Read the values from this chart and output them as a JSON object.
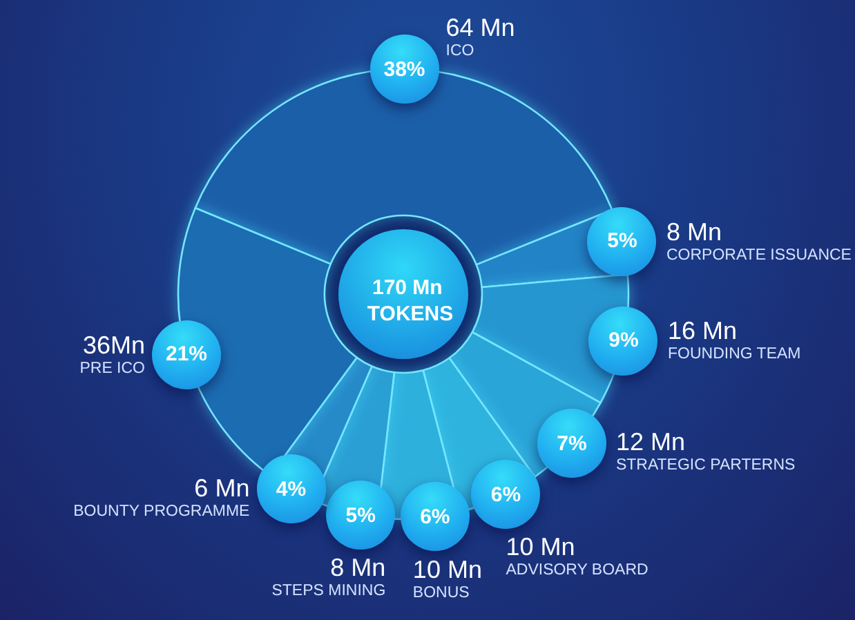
{
  "chart_data": {
    "type": "donut",
    "title": "170 Mn TOKENS",
    "categories": [
      "ICO",
      "CORPORATE ISSUANCE",
      "FOUNDING TEAM",
      "STRATEGIC PARTERNS",
      "ADVISORY BOARD",
      "BONUS",
      "STEPS MINING",
      "BOUNTY PROGRAMME",
      "PRE ICO"
    ],
    "values": [
      64,
      8,
      16,
      12,
      10,
      10,
      8,
      6,
      36
    ],
    "value_labels": [
      "64 Mn",
      "8 Mn",
      "16 Mn",
      "12 Mn",
      "10 Mn",
      "10 Mn",
      "8 Mn",
      "6 Mn",
      "36Mn"
    ],
    "colors": [
      "#1b5fa9",
      "#2383c6",
      "#2796d0",
      "#2aa5d8",
      "#2eb3de",
      "#2fb0dd",
      "#2a9fd4",
      "#2589c8",
      "#1d6cb2"
    ],
    "annotations": [
      "38%",
      "5%",
      "9%",
      "7%",
      "6%",
      "6%",
      "5%",
      "4%",
      "21%"
    ]
  }
}
